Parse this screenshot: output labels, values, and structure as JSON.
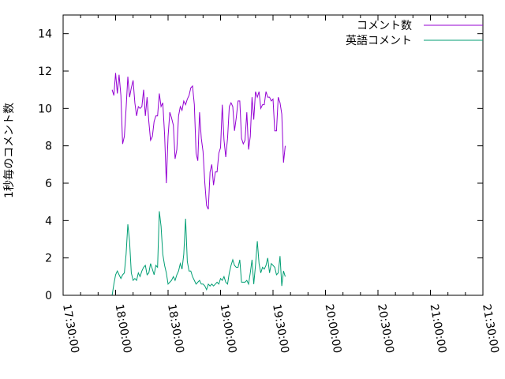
{
  "chart_data": {
    "type": "line",
    "title": "",
    "xlabel": "",
    "ylabel": "1秒毎のコメント数",
    "ylim": [
      0,
      15
    ],
    "yticks": [
      0,
      2,
      4,
      6,
      8,
      10,
      12,
      14
    ],
    "xlim": [
      "17:30:00",
      "21:30:00"
    ],
    "xticks": [
      "17:30:00",
      "18:00:00",
      "18:30:00",
      "19:00:00",
      "19:30:00",
      "20:00:00",
      "20:30:00",
      "21:00:00",
      "21:30:00"
    ],
    "grid": false,
    "legend_position": "top-right",
    "series": [
      {
        "name": "コメント数",
        "color": "#9400d3",
        "points": [
          [
            "17:58:00",
            11.0
          ],
          [
            "17:59:00",
            10.7
          ],
          [
            "18:00:00",
            11.9
          ],
          [
            "18:01:00",
            10.8
          ],
          [
            "18:02:00",
            11.8
          ],
          [
            "18:03:00",
            10.7
          ],
          [
            "18:04:00",
            8.1
          ],
          [
            "18:05:00",
            8.5
          ],
          [
            "18:06:00",
            10.0
          ],
          [
            "18:07:00",
            11.7
          ],
          [
            "18:08:00",
            10.6
          ],
          [
            "18:09:00",
            11.1
          ],
          [
            "18:10:00",
            11.5
          ],
          [
            "18:11:00",
            10.3
          ],
          [
            "18:12:00",
            9.6
          ],
          [
            "18:13:00",
            10.1
          ],
          [
            "18:14:00",
            10.0
          ],
          [
            "18:15:00",
            10.1
          ],
          [
            "18:16:00",
            11.0
          ],
          [
            "18:17:00",
            9.6
          ],
          [
            "18:18:00",
            10.6
          ],
          [
            "18:19:00",
            9.3
          ],
          [
            "18:20:00",
            8.3
          ],
          [
            "18:21:00",
            8.5
          ],
          [
            "18:22:00",
            9.3
          ],
          [
            "18:23:00",
            9.6
          ],
          [
            "18:24:00",
            9.6
          ],
          [
            "18:25:00",
            10.8
          ],
          [
            "18:26:00",
            10.1
          ],
          [
            "18:27:00",
            10.3
          ],
          [
            "18:28:00",
            8.6
          ],
          [
            "18:29:00",
            6.0
          ],
          [
            "18:30:00",
            8.5
          ],
          [
            "18:31:00",
            9.8
          ],
          [
            "18:32:00",
            9.5
          ],
          [
            "18:33:00",
            9.1
          ],
          [
            "18:34:00",
            7.3
          ],
          [
            "18:35:00",
            7.8
          ],
          [
            "18:36:00",
            9.6
          ],
          [
            "18:37:00",
            10.1
          ],
          [
            "18:38:00",
            9.9
          ],
          [
            "18:39:00",
            10.4
          ],
          [
            "18:40:00",
            10.2
          ],
          [
            "18:41:00",
            10.5
          ],
          [
            "18:42:00",
            10.7
          ],
          [
            "18:43:00",
            11.1
          ],
          [
            "18:44:00",
            11.2
          ],
          [
            "18:45:00",
            10.2
          ],
          [
            "18:46:00",
            7.6
          ],
          [
            "18:47:00",
            7.2
          ],
          [
            "18:48:00",
            9.8
          ],
          [
            "18:49:00",
            8.4
          ],
          [
            "18:50:00",
            7.7
          ],
          [
            "18:51:00",
            6.0
          ],
          [
            "18:52:00",
            4.8
          ],
          [
            "18:53:00",
            4.6
          ],
          [
            "18:54:00",
            6.6
          ],
          [
            "18:55:00",
            7.0
          ],
          [
            "18:56:00",
            5.9
          ],
          [
            "18:57:00",
            6.6
          ],
          [
            "18:58:00",
            6.6
          ],
          [
            "18:59:00",
            7.6
          ],
          [
            "19:00:00",
            7.9
          ],
          [
            "19:01:00",
            10.2
          ],
          [
            "19:02:00",
            8.3
          ],
          [
            "19:03:00",
            7.4
          ],
          [
            "19:04:00",
            8.4
          ],
          [
            "19:05:00",
            10.1
          ],
          [
            "19:06:00",
            10.3
          ],
          [
            "19:07:00",
            10.1
          ],
          [
            "19:08:00",
            8.8
          ],
          [
            "19:09:00",
            9.5
          ],
          [
            "19:10:00",
            10.4
          ],
          [
            "19:11:00",
            10.4
          ],
          [
            "19:12:00",
            8.4
          ],
          [
            "19:13:00",
            8.1
          ],
          [
            "19:14:00",
            8.3
          ],
          [
            "19:15:00",
            9.8
          ],
          [
            "19:16:00",
            7.8
          ],
          [
            "19:17:00",
            8.5
          ],
          [
            "19:18:00",
            10.6
          ],
          [
            "19:19:00",
            9.4
          ],
          [
            "19:20:00",
            10.9
          ],
          [
            "19:21:00",
            10.6
          ],
          [
            "19:22:00",
            10.9
          ],
          [
            "19:23:00",
            10.0
          ],
          [
            "19:24:00",
            10.2
          ],
          [
            "19:25:00",
            10.2
          ],
          [
            "19:26:00",
            10.9
          ],
          [
            "19:27:00",
            10.6
          ],
          [
            "19:28:00",
            10.6
          ],
          [
            "19:29:00",
            10.4
          ],
          [
            "19:30:00",
            10.5
          ],
          [
            "19:31:00",
            8.8
          ],
          [
            "19:32:00",
            8.8
          ],
          [
            "19:33:00",
            10.6
          ],
          [
            "19:34:00",
            10.3
          ],
          [
            "19:35:00",
            9.7
          ],
          [
            "19:36:00",
            7.1
          ],
          [
            "19:37:00",
            8.0
          ]
        ]
      },
      {
        "name": "英語コメント",
        "color": "#009e73",
        "points": [
          [
            "17:58:00",
            0.0
          ],
          [
            "17:59:00",
            0.6
          ],
          [
            "18:00:00",
            1.1
          ],
          [
            "18:01:00",
            1.3
          ],
          [
            "18:02:00",
            1.1
          ],
          [
            "18:03:00",
            0.9
          ],
          [
            "18:04:00",
            1.1
          ],
          [
            "18:05:00",
            1.2
          ],
          [
            "18:06:00",
            2.2
          ],
          [
            "18:07:00",
            3.8
          ],
          [
            "18:08:00",
            2.9
          ],
          [
            "18:09:00",
            1.2
          ],
          [
            "18:10:00",
            0.8
          ],
          [
            "18:11:00",
            0.9
          ],
          [
            "18:12:00",
            0.8
          ],
          [
            "18:13:00",
            1.2
          ],
          [
            "18:14:00",
            1.0
          ],
          [
            "18:15:00",
            1.3
          ],
          [
            "18:16:00",
            1.5
          ],
          [
            "18:17:00",
            1.6
          ],
          [
            "18:18:00",
            1.1
          ],
          [
            "18:19:00",
            1.2
          ],
          [
            "18:20:00",
            1.7
          ],
          [
            "18:21:00",
            1.4
          ],
          [
            "18:22:00",
            1.1
          ],
          [
            "18:23:00",
            1.6
          ],
          [
            "18:24:00",
            1.5
          ],
          [
            "18:25:00",
            4.5
          ],
          [
            "18:26:00",
            3.7
          ],
          [
            "18:27:00",
            2.2
          ],
          [
            "18:28:00",
            1.6
          ],
          [
            "18:29:00",
            1.2
          ],
          [
            "18:30:00",
            0.6
          ],
          [
            "18:31:00",
            0.7
          ],
          [
            "18:32:00",
            0.8
          ],
          [
            "18:33:00",
            1.0
          ],
          [
            "18:34:00",
            0.8
          ],
          [
            "18:35:00",
            1.1
          ],
          [
            "18:36:00",
            1.3
          ],
          [
            "18:37:00",
            1.7
          ],
          [
            "18:38:00",
            1.4
          ],
          [
            "18:39:00",
            2.2
          ],
          [
            "18:40:00",
            4.1
          ],
          [
            "18:41:00",
            1.8
          ],
          [
            "18:42:00",
            1.3
          ],
          [
            "18:43:00",
            1.3
          ],
          [
            "18:44:00",
            1.0
          ],
          [
            "18:45:00",
            0.8
          ],
          [
            "18:46:00",
            0.6
          ],
          [
            "18:47:00",
            0.7
          ],
          [
            "18:48:00",
            0.8
          ],
          [
            "18:49:00",
            0.6
          ],
          [
            "18:50:00",
            0.6
          ],
          [
            "18:51:00",
            0.5
          ],
          [
            "18:52:00",
            0.3
          ],
          [
            "18:53:00",
            0.6
          ],
          [
            "18:54:00",
            0.5
          ],
          [
            "18:55:00",
            0.6
          ],
          [
            "18:56:00",
            0.5
          ],
          [
            "18:57:00",
            0.6
          ],
          [
            "18:58:00",
            0.7
          ],
          [
            "18:59:00",
            0.6
          ],
          [
            "19:00:00",
            0.9
          ],
          [
            "19:01:00",
            0.8
          ],
          [
            "19:02:00",
            1.0
          ],
          [
            "19:03:00",
            0.7
          ],
          [
            "19:04:00",
            0.6
          ],
          [
            "19:05:00",
            1.2
          ],
          [
            "19:06:00",
            1.6
          ],
          [
            "19:07:00",
            1.9
          ],
          [
            "19:08:00",
            1.6
          ],
          [
            "19:09:00",
            1.5
          ],
          [
            "19:10:00",
            1.5
          ],
          [
            "19:11:00",
            1.9
          ],
          [
            "19:12:00",
            0.7
          ],
          [
            "19:13:00",
            0.7
          ],
          [
            "19:14:00",
            0.7
          ],
          [
            "19:15:00",
            0.8
          ],
          [
            "19:16:00",
            0.6
          ],
          [
            "19:17:00",
            1.2
          ],
          [
            "19:18:00",
            1.9
          ],
          [
            "19:19:00",
            0.6
          ],
          [
            "19:20:00",
            1.6
          ],
          [
            "19:21:00",
            2.9
          ],
          [
            "19:22:00",
            1.7
          ],
          [
            "19:23:00",
            1.2
          ],
          [
            "19:24:00",
            1.5
          ],
          [
            "19:25:00",
            1.4
          ],
          [
            "19:26:00",
            1.6
          ],
          [
            "19:27:00",
            2.0
          ],
          [
            "19:28:00",
            1.2
          ],
          [
            "19:29:00",
            1.7
          ],
          [
            "19:30:00",
            1.6
          ],
          [
            "19:31:00",
            1.5
          ],
          [
            "19:32:00",
            1.1
          ],
          [
            "19:33:00",
            1.2
          ],
          [
            "19:34:00",
            2.1
          ],
          [
            "19:35:00",
            0.5
          ],
          [
            "19:36:00",
            1.3
          ],
          [
            "19:37:00",
            1.0
          ]
        ]
      }
    ]
  }
}
